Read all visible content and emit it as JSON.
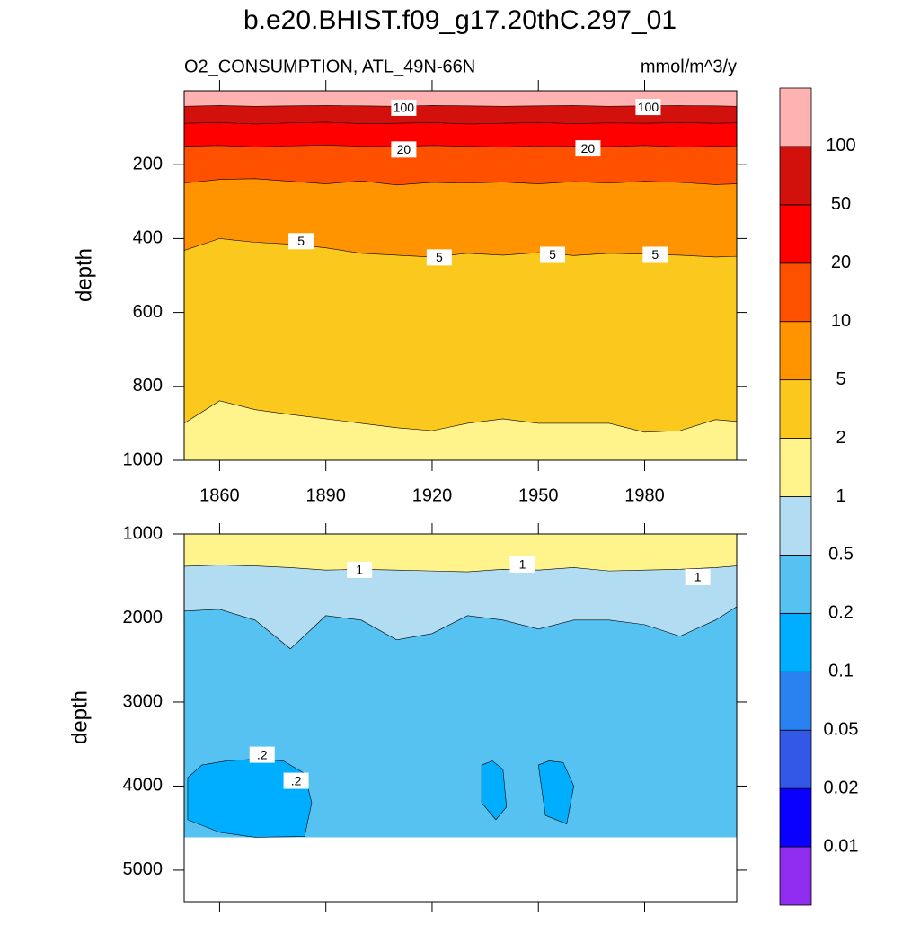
{
  "chart_data": [
    {
      "type": "contour",
      "title": "b.e20.BHIST.f09_g17.20thC.297_01",
      "left_label": "O2_CONSUMPTION, ATL_49N-66N",
      "right_label": "mmol/m^3/y",
      "ylabel": "depth",
      "xlim": [
        1850,
        2006
      ],
      "xticks": [
        1860,
        1890,
        1920,
        1950,
        1980
      ],
      "ylim": [
        0,
        1000
      ],
      "yticks": [
        200,
        400,
        600,
        800,
        1000
      ],
      "y_reversed": true,
      "bottom_depth": 1000,
      "base_level": 1,
      "x": [
        1850,
        1860,
        1870,
        1880,
        1890,
        1900,
        1910,
        1920,
        1930,
        1940,
        1950,
        1960,
        1970,
        1980,
        1990,
        2000,
        2006
      ],
      "contours": [
        {
          "level": 2,
          "depths": [
            900,
            839,
            863,
            876,
            888,
            900,
            912,
            920,
            900,
            888,
            900,
            900,
            900,
            924,
            920,
            890,
            895
          ]
        },
        {
          "level": 5,
          "depths": [
            432,
            400,
            410,
            415,
            425,
            440,
            445,
            450,
            440,
            445,
            438,
            446,
            440,
            442,
            445,
            450,
            448
          ]
        },
        {
          "level": 10,
          "depths": [
            250,
            240,
            238,
            245,
            252,
            244,
            255,
            248,
            250,
            247,
            252,
            246,
            250,
            245,
            248,
            254,
            252
          ]
        },
        {
          "level": 20,
          "depths": [
            150,
            148,
            152,
            149,
            147,
            150,
            151,
            148,
            150,
            152,
            149,
            150,
            151,
            148,
            152,
            150,
            149
          ]
        },
        {
          "level": 50,
          "depths": [
            88,
            86,
            90,
            87,
            85,
            89,
            88,
            86,
            90,
            88,
            86,
            89,
            87,
            88,
            86,
            88,
            87
          ]
        },
        {
          "level": 100,
          "depths": [
            42,
            40,
            42,
            41,
            40,
            41,
            42,
            40,
            41,
            42,
            41,
            40,
            42,
            41,
            40,
            41,
            42
          ]
        }
      ],
      "contour_labels": [
        {
          "x": 1912,
          "depth": 46,
          "label": 100
        },
        {
          "x": 1981,
          "depth": 44,
          "label": 100
        },
        {
          "x": 1912,
          "depth": 159,
          "label": 20
        },
        {
          "x": 1964,
          "depth": 156,
          "label": 20
        },
        {
          "x": 1883,
          "depth": 407,
          "label": 5
        },
        {
          "x": 1922,
          "depth": 451,
          "label": 5
        },
        {
          "x": 1954,
          "depth": 444,
          "label": 5
        },
        {
          "x": 1983,
          "depth": 444,
          "label": 5
        }
      ]
    },
    {
      "type": "contour",
      "ylabel": "depth",
      "xlim": [
        1850,
        2006
      ],
      "ylim": [
        1000,
        5375
      ],
      "yticks": [
        1000,
        2000,
        3000,
        4000,
        5000
      ],
      "y_reversed": true,
      "bottom_depth": 4610,
      "base_level": 0.2,
      "x": [
        1850,
        1860,
        1870,
        1880,
        1890,
        1900,
        1910,
        1920,
        1930,
        1940,
        1950,
        1960,
        1970,
        1980,
        1990,
        2000,
        2006
      ],
      "contours": [
        {
          "level": 0.5,
          "depths": [
            1918,
            1897,
            2025,
            2367,
            1972,
            2025,
            2260,
            2185,
            1972,
            2025,
            2132,
            2025,
            2025,
            2079,
            2217,
            2025,
            1865
          ]
        },
        {
          "level": 1,
          "depths": [
            1384,
            1370,
            1380,
            1400,
            1430,
            1420,
            1430,
            1440,
            1450,
            1420,
            1430,
            1400,
            1440,
            1430,
            1420,
            1400,
            1380
          ]
        }
      ],
      "regions": [
        {
          "level": 0.2,
          "x": [
            1851,
            1855,
            1862,
            1870,
            1878,
            1884,
            1886,
            1884,
            1870,
            1860,
            1851
          ],
          "depths": [
            3900,
            3750,
            3700,
            3680,
            3700,
            3850,
            4200,
            4600,
            4610,
            4550,
            4400
          ]
        },
        {
          "level": 0.2,
          "x": [
            1934,
            1937,
            1940,
            1941,
            1938,
            1934
          ],
          "depths": [
            3750,
            3700,
            3800,
            4250,
            4400,
            4200
          ]
        },
        {
          "level": 0.2,
          "x": [
            1950,
            1953,
            1957,
            1960,
            1958,
            1952
          ],
          "depths": [
            3750,
            3700,
            3720,
            4000,
            4450,
            4350
          ]
        }
      ],
      "contour_labels": [
        {
          "x": 1899.5,
          "depth": 1427,
          "label": 1
        },
        {
          "x": 1945.5,
          "depth": 1363,
          "label": 1
        },
        {
          "x": 1995,
          "depth": 1513,
          "label": 1
        },
        {
          "x": 1872,
          "depth": 3627,
          "label": {
            "value": 0.2,
            "label": ".2"
          }
        },
        {
          "x": 1881.6,
          "depth": 3937,
          "label": {
            "value": 0.2,
            "label": ".2"
          }
        }
      ]
    },
    {
      "type": "colorbar",
      "levels": [
        0.01,
        0.02,
        0.05,
        0.1,
        0.2,
        0.5,
        1,
        2,
        5,
        10,
        20,
        50,
        100
      ],
      "colors": [
        "#8f2cf0",
        "#0a00ff",
        "#3358e8",
        "#2a82f0",
        "#00aeff",
        "#56c2f2",
        "#b2dcf2",
        "#fff48c",
        "#fbc81e",
        "#ff9300",
        "#ff5000",
        "#ff0000",
        "#d2100c",
        "#ffb2b2"
      ]
    }
  ]
}
